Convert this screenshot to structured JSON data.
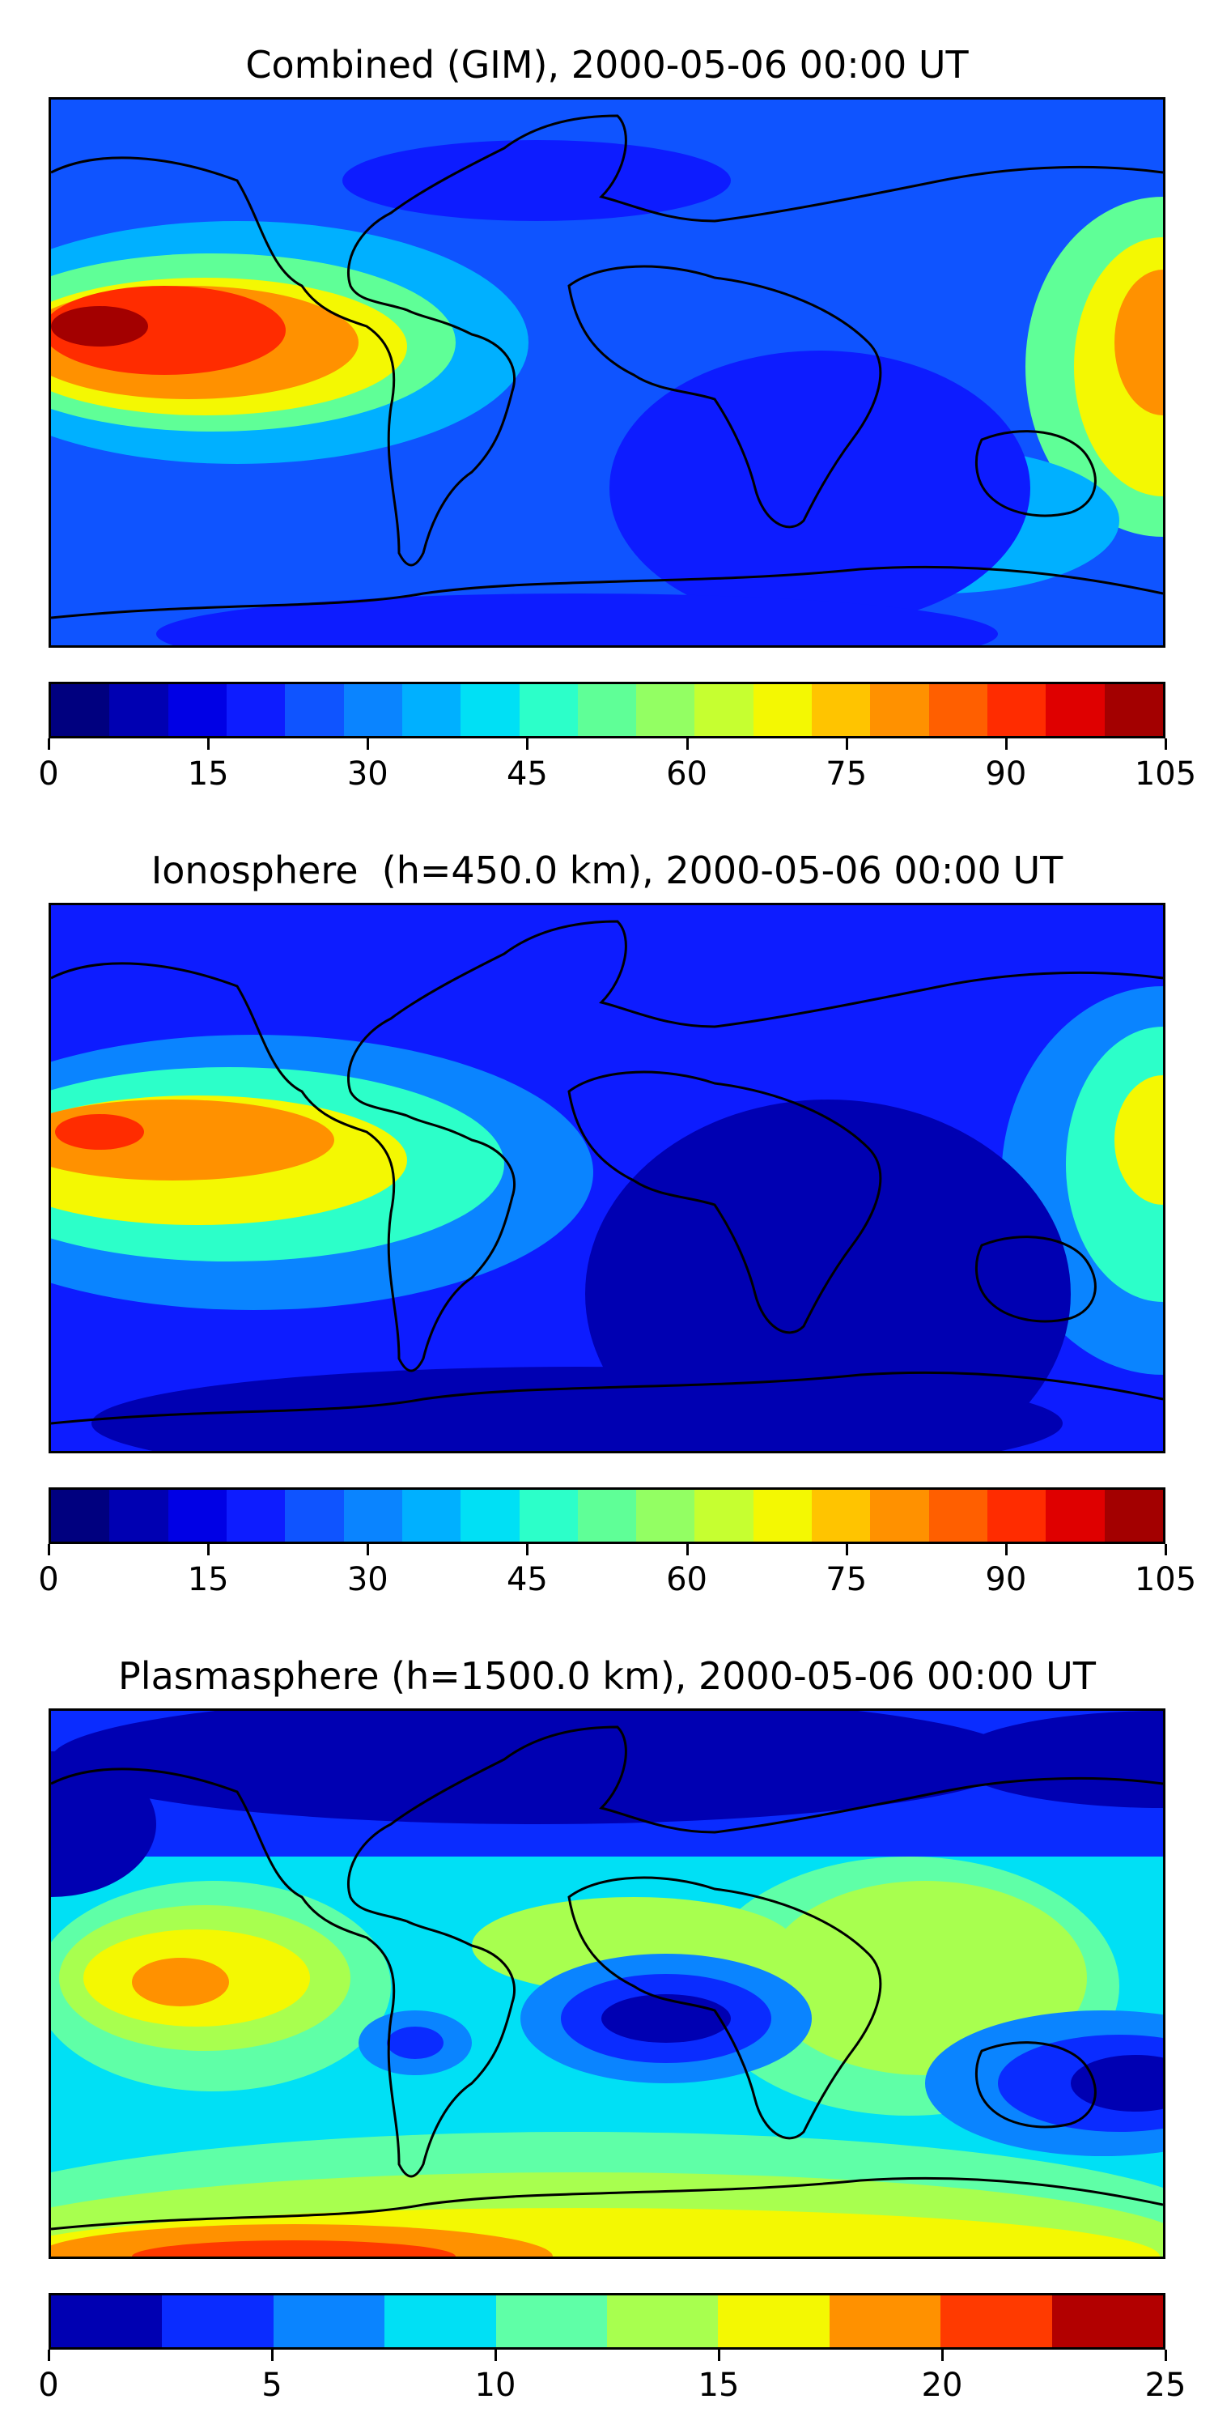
{
  "panels": [
    {
      "title": "Combined (GIM), 2000-05-06 00:00 UT",
      "colorbar": {
        "ticks": [
          "0",
          "15",
          "30",
          "45",
          "60",
          "75",
          "90",
          "105"
        ],
        "colors": [
          "#00007f",
          "#0000b2",
          "#0000e5",
          "#0d1cff",
          "#0f54ff",
          "#0a84ff",
          "#00b0ff",
          "#00e0f5",
          "#2cffc9",
          "#5fff97",
          "#93ff63",
          "#c6ff30",
          "#f4f802",
          "#ffc400",
          "#ff9100",
          "#ff5f00",
          "#ff2c00",
          "#df0000",
          "#a30000"
        ]
      },
      "fill_levels": [
        {
          "color": "#0d1cff",
          "value": 18
        },
        {
          "color": "#0f54ff",
          "value": 23
        },
        {
          "color": "#00b0ff",
          "value": 35
        },
        {
          "color": "#5fff97",
          "value": 52
        },
        {
          "color": "#f4f802",
          "value": 67
        },
        {
          "color": "#ff9100",
          "value": 78
        },
        {
          "color": "#ff2c00",
          "value": 92
        },
        {
          "color": "#a30000",
          "value": 104
        }
      ]
    },
    {
      "title": "Ionosphere  (h=450.0 km), 2000-05-06 00:00 UT",
      "colorbar": {
        "ticks": [
          "0",
          "15",
          "30",
          "45",
          "60",
          "75",
          "90",
          "105"
        ],
        "colors": [
          "#00007f",
          "#0000b2",
          "#0000e5",
          "#0d1cff",
          "#0f54ff",
          "#0a84ff",
          "#00b0ff",
          "#00e0f5",
          "#2cffc9",
          "#5fff97",
          "#93ff63",
          "#c6ff30",
          "#f4f802",
          "#ffc400",
          "#ff9100",
          "#ff5f00",
          "#ff2c00",
          "#df0000",
          "#a30000"
        ]
      },
      "fill_levels": [
        {
          "color": "#0000b2",
          "value": 8
        },
        {
          "color": "#0d1cff",
          "value": 18
        },
        {
          "color": "#0a84ff",
          "value": 30
        },
        {
          "color": "#2cffc9",
          "value": 47
        },
        {
          "color": "#f4f802",
          "value": 67
        },
        {
          "color": "#ff9100",
          "value": 80
        },
        {
          "color": "#ff2c00",
          "value": 95
        }
      ]
    },
    {
      "title": "Plasmasphere (h=1500.0 km), 2000-05-06 00:00 UT",
      "colorbar": {
        "ticks": [
          "0",
          "5",
          "10",
          "15",
          "20",
          "25"
        ],
        "colors": [
          "#0000b2",
          "#0a2cff",
          "#0a84ff",
          "#00e0f5",
          "#5fffa7",
          "#a8ff4f",
          "#f4f802",
          "#ff9100",
          "#ff3a00",
          "#b20000"
        ]
      },
      "fill_levels": [
        {
          "color": "#0000b2",
          "value": 1
        },
        {
          "color": "#0a2cff",
          "value": 4
        },
        {
          "color": "#0a84ff",
          "value": 6
        },
        {
          "color": "#00e0f5",
          "value": 9
        },
        {
          "color": "#5fffa7",
          "value": 11
        },
        {
          "color": "#a8ff4f",
          "value": 14
        },
        {
          "color": "#f4f802",
          "value": 16
        },
        {
          "color": "#ff9100",
          "value": 19
        },
        {
          "color": "#ff3a00",
          "value": 21
        }
      ]
    }
  ]
}
